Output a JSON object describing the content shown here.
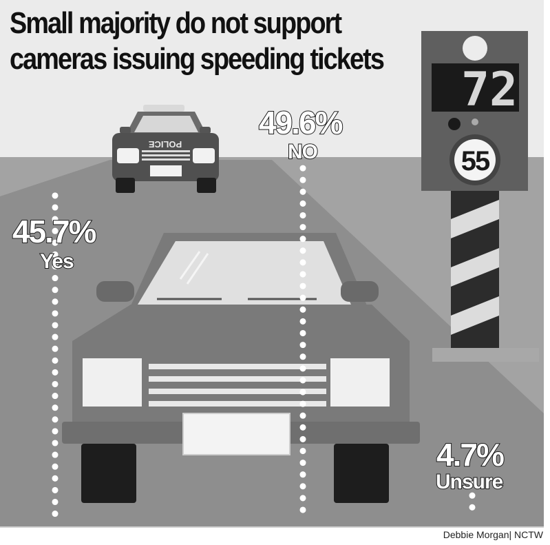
{
  "title_line1": "Small majority do not support",
  "title_line2": "cameras issuing speeding tickets",
  "credit": "Debbie Morgan| NCTW",
  "sign": {
    "radar_display": "72",
    "speed_limit": "55",
    "police_text": "POLICE"
  },
  "colors": {
    "sky": "#ebebeb",
    "ground": "#a3a3a3",
    "car_body": "#7a7a7a",
    "dark": "#3a3a3a",
    "light": "#e4e4e4"
  },
  "chart_data": {
    "type": "bar",
    "title": "Small majority do not support cameras issuing speeding tickets",
    "categories": [
      "Yes",
      "NO",
      "Unsure"
    ],
    "values": [
      45.7,
      49.6,
      4.7
    ],
    "value_labels": [
      "45.7%",
      "49.6%",
      "4.7%"
    ],
    "unit": "%",
    "ylim": [
      0,
      55
    ]
  }
}
